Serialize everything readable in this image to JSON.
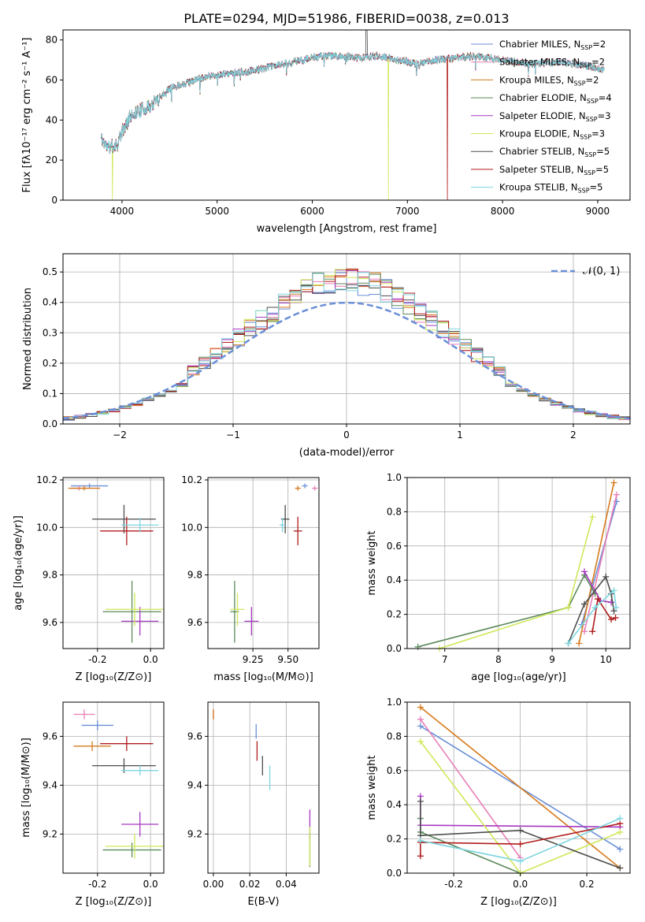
{
  "title": "PLATE=0294, MJD=51986, FIBERID=0038, z=0.013",
  "colors": {
    "Chabrier MILES": "#6a8fd8",
    "Salpeter MILES": "#e87fb8",
    "Kroupa MILES": "#d67a1c",
    "Chabrier ELODIE": "#5c8a5c",
    "Salpeter ELODIE": "#a638c0",
    "Kroupa ELODIE": "#cfe85a",
    "Chabrier STELIB": "#4d4d4d",
    "Salpeter STELIB": "#b01c1c",
    "Kroupa STELIB": "#7ed6e0"
  },
  "spectrum": {
    "xlabel": "wavelength [Angstrom, rest frame]",
    "ylabel": "Flux [fλ10⁻¹⁷ erg cm⁻² s⁻¹ A⁻¹]",
    "legend": [
      {
        "name": "Chabrier MILES",
        "nssp": "2"
      },
      {
        "name": "Salpeter MILES",
        "nssp": "2"
      },
      {
        "name": "Kroupa MILES",
        "nssp": "2"
      },
      {
        "name": "Chabrier ELODIE",
        "nssp": "4"
      },
      {
        "name": "Salpeter ELODIE",
        "nssp": "3"
      },
      {
        "name": "Kroupa ELODIE",
        "nssp": "3"
      },
      {
        "name": "Chabrier STELIB",
        "nssp": "5"
      },
      {
        "name": "Salpeter STELIB",
        "nssp": "5"
      },
      {
        "name": "Kroupa STELIB",
        "nssp": "5"
      }
    ],
    "nssp_label": "N",
    "nssp_sub": "SSP"
  },
  "chart_data": [
    {
      "type": "line",
      "title": "PLATE=0294, MJD=51986, FIBERID=0038, z=0.013",
      "xlabel": "wavelength [Angstrom, rest frame]",
      "xlim": [
        3380,
        9340
      ],
      "ylim": [
        0,
        85
      ],
      "xticks": [
        4000,
        5000,
        6000,
        7000,
        8000,
        9000
      ],
      "yticks": [
        0,
        20,
        40,
        60,
        80
      ],
      "grid": false,
      "legend": "top-right",
      "continuum": [
        [
          3780,
          31
        ],
        [
          3850,
          26
        ],
        [
          3950,
          28
        ],
        [
          4000,
          34
        ],
        [
          4100,
          43
        ],
        [
          4300,
          47
        ],
        [
          4500,
          56
        ],
        [
          4700,
          59
        ],
        [
          4900,
          62
        ],
        [
          5100,
          63
        ],
        [
          5300,
          64
        ],
        [
          5500,
          66
        ],
        [
          5700,
          68
        ],
        [
          5900,
          70
        ],
        [
          6100,
          72
        ],
        [
          6300,
          72
        ],
        [
          6500,
          71
        ],
        [
          6700,
          72
        ],
        [
          6900,
          70
        ],
        [
          7100,
          68
        ],
        [
          7300,
          70
        ],
        [
          7500,
          71
        ],
        [
          7700,
          72
        ],
        [
          8000,
          70
        ],
        [
          8300,
          68
        ],
        [
          8600,
          69
        ],
        [
          8900,
          67
        ],
        [
          9070,
          65
        ]
      ],
      "model_dips": [
        {
          "series": "Kroupa ELODIE",
          "x": 3900,
          "y": 0
        },
        {
          "series": "Kroupa ELODIE",
          "x": 6800,
          "y": 0
        },
        {
          "series": "Salpeter STELIB",
          "x": 7420,
          "y": 0
        }
      ]
    },
    {
      "type": "histogram",
      "xlabel": "(data-model)/error",
      "ylabel": "Normed distribution",
      "xlim": [
        -2.5,
        2.5
      ],
      "ylim": [
        0,
        0.56
      ],
      "xticks": [
        -2,
        -1,
        0,
        1,
        2
      ],
      "yticks": [
        0,
        0.1,
        0.2,
        0.3,
        0.4,
        0.5
      ],
      "bin_width": 0.1,
      "bin_start": -2.5,
      "reference_legend": "𝒩(0, 1)",
      "grid": true,
      "legend": "top-right"
    },
    {
      "type": "scatter",
      "xlabel": "Z [log₁₀(Z/Z⊙)]",
      "ylabel": "age  [log₁₀(age/yr)]",
      "xlim": [
        -0.33,
        0.05
      ],
      "ylim": [
        9.49,
        10.21
      ],
      "xticks": [
        -0.2,
        0.0
      ],
      "yticks": [
        9.6,
        9.8,
        10.0,
        10.2
      ],
      "points": [
        {
          "series": "Chabrier MILES",
          "x": -0.23,
          "y": 10.175,
          "xerr": 0.07,
          "yerr": 0.01
        },
        {
          "series": "Salpeter MILES",
          "x": -0.27,
          "y": 10.165,
          "xerr": 0.03,
          "yerr": 0.01
        },
        {
          "series": "Kroupa MILES",
          "x": -0.25,
          "y": 10.165,
          "xerr": 0.06,
          "yerr": 0.01
        },
        {
          "series": "Chabrier ELODIE",
          "x": -0.07,
          "y": 9.645,
          "xerr": 0.11,
          "yerr": 0.13
        },
        {
          "series": "Salpeter ELODIE",
          "x": -0.04,
          "y": 9.605,
          "xerr": 0.07,
          "yerr": 0.06
        },
        {
          "series": "Kroupa ELODIE",
          "x": -0.06,
          "y": 9.655,
          "xerr": 0.11,
          "yerr": 0.07
        },
        {
          "series": "Chabrier STELIB",
          "x": -0.1,
          "y": 10.035,
          "xerr": 0.12,
          "yerr": 0.06
        },
        {
          "series": "Salpeter STELIB",
          "x": -0.09,
          "y": 9.985,
          "xerr": 0.1,
          "yerr": 0.06
        },
        {
          "series": "Kroupa STELIB",
          "x": -0.04,
          "y": 10.01,
          "xerr": 0.07,
          "yerr": 0.03
        }
      ]
    },
    {
      "type": "scatter",
      "xlabel": "mass [log₁₀(M/M⊙)]",
      "xlim": [
        8.93,
        9.72
      ],
      "ylim": [
        9.49,
        10.21
      ],
      "xticks": [
        9.25,
        9.5
      ],
      "yticks": [
        9.6,
        9.8,
        10.0,
        10.2
      ],
      "points": [
        {
          "series": "Chabrier MILES",
          "x": 9.62,
          "y": 10.175,
          "xerr": 0.02,
          "yerr": 0.01
        },
        {
          "series": "Salpeter MILES",
          "x": 9.69,
          "y": 10.165,
          "xerr": 0.02,
          "yerr": 0.01
        },
        {
          "series": "Kroupa MILES",
          "x": 9.57,
          "y": 10.165,
          "xerr": 0.02,
          "yerr": 0.01
        },
        {
          "series": "Chabrier ELODIE",
          "x": 9.12,
          "y": 9.645,
          "xerr": 0.03,
          "yerr": 0.13
        },
        {
          "series": "Salpeter ELODIE",
          "x": 9.24,
          "y": 9.605,
          "xerr": 0.05,
          "yerr": 0.06
        },
        {
          "series": "Kroupa ELODIE",
          "x": 9.14,
          "y": 9.655,
          "xerr": 0.05,
          "yerr": 0.07
        },
        {
          "series": "Chabrier STELIB",
          "x": 9.48,
          "y": 10.035,
          "xerr": 0.03,
          "yerr": 0.06
        },
        {
          "series": "Salpeter STELIB",
          "x": 9.57,
          "y": 9.985,
          "xerr": 0.03,
          "yerr": 0.06
        },
        {
          "series": "Kroupa STELIB",
          "x": 9.46,
          "y": 10.01,
          "xerr": 0.02,
          "yerr": 0.03
        }
      ]
    },
    {
      "type": "line",
      "xlabel": "age  [log₁₀(age/yr)]",
      "ylabel": "mass weight",
      "xlim": [
        6.3,
        10.45
      ],
      "ylim": [
        0,
        1
      ],
      "xticks": [
        7,
        8,
        9,
        10
      ],
      "yticks": [
        0,
        0.2,
        0.4,
        0.6,
        0.8,
        1.0
      ],
      "series": [
        {
          "name": "Chabrier MILES",
          "points": [
            [
              9.55,
              0.14
            ],
            [
              10.2,
              0.86
            ]
          ]
        },
        {
          "name": "Salpeter MILES",
          "points": [
            [
              9.6,
              0.1
            ],
            [
              10.2,
              0.9
            ]
          ]
        },
        {
          "name": "Kroupa MILES",
          "points": [
            [
              9.5,
              0.03
            ],
            [
              10.15,
              0.97
            ]
          ]
        },
        {
          "name": "Chabrier ELODIE",
          "points": [
            [
              6.5,
              0.01
            ],
            [
              9.3,
              0.24
            ],
            [
              9.6,
              0.43
            ],
            [
              9.8,
              0.32
            ]
          ]
        },
        {
          "name": "Salpeter ELODIE",
          "points": [
            [
              9.6,
              0.45
            ],
            [
              9.9,
              0.28
            ],
            [
              10.1,
              0.27
            ]
          ]
        },
        {
          "name": "Kroupa ELODIE",
          "points": [
            [
              6.9,
              0.0
            ],
            [
              9.3,
              0.24
            ],
            [
              9.75,
              0.77
            ]
          ]
        },
        {
          "name": "Chabrier STELIB",
          "points": [
            [
              9.3,
              0.03
            ],
            [
              9.6,
              0.26
            ],
            [
              10.0,
              0.42
            ],
            [
              10.1,
              0.32
            ],
            [
              10.15,
              0.22
            ]
          ]
        },
        {
          "name": "Salpeter STELIB",
          "points": [
            [
              9.75,
              0.1
            ],
            [
              9.85,
              0.29
            ],
            [
              10.1,
              0.17
            ],
            [
              10.18,
              0.18
            ]
          ]
        },
        {
          "name": "Kroupa STELIB",
          "points": [
            [
              9.3,
              0.03
            ],
            [
              9.8,
              0.24
            ],
            [
              10.15,
              0.34
            ],
            [
              10.19,
              0.24
            ]
          ]
        }
      ]
    },
    {
      "type": "scatter",
      "xlabel": "Z [log₁₀(Z/Z⊙)]",
      "ylabel": "mass [log₁₀(M/M⊙)]",
      "xlim": [
        -0.33,
        0.05
      ],
      "ylim": [
        9.04,
        9.74
      ],
      "xticks": [
        -0.2,
        0.0
      ],
      "yticks": [
        9.2,
        9.4,
        9.6
      ],
      "points": [
        {
          "series": "Chabrier MILES",
          "x": -0.2,
          "y": 9.645,
          "xerr": 0.06,
          "yerr": 0.02
        },
        {
          "series": "Salpeter MILES",
          "x": -0.25,
          "y": 9.69,
          "xerr": 0.04,
          "yerr": 0.02
        },
        {
          "series": "Kroupa MILES",
          "x": -0.22,
          "y": 9.56,
          "xerr": 0.07,
          "yerr": 0.02
        },
        {
          "series": "Chabrier ELODIE",
          "x": -0.07,
          "y": 9.135,
          "xerr": 0.11,
          "yerr": 0.03
        },
        {
          "series": "Salpeter ELODIE",
          "x": -0.04,
          "y": 9.24,
          "xerr": 0.07,
          "yerr": 0.05
        },
        {
          "series": "Kroupa ELODIE",
          "x": -0.06,
          "y": 9.15,
          "xerr": 0.11,
          "yerr": 0.05
        },
        {
          "series": "Chabrier STELIB",
          "x": -0.1,
          "y": 9.48,
          "xerr": 0.12,
          "yerr": 0.03
        },
        {
          "series": "Salpeter STELIB",
          "x": -0.09,
          "y": 9.57,
          "xerr": 0.1,
          "yerr": 0.03
        },
        {
          "series": "Kroupa STELIB",
          "x": -0.04,
          "y": 9.46,
          "xerr": 0.07,
          "yerr": 0.02
        }
      ]
    },
    {
      "type": "scatter",
      "xlabel": "E(B-V)",
      "xlim": [
        -0.003,
        0.058
      ],
      "ylim": [
        9.04,
        9.74
      ],
      "xticks": [
        0.0,
        0.02,
        0.04
      ],
      "yticks": [
        9.2,
        9.4,
        9.6
      ],
      "points": [
        {
          "series": "Chabrier MILES",
          "x": 0.0235,
          "y": 9.62,
          "xerr": 0.0,
          "yerr": 0.03
        },
        {
          "series": "Salpeter MILES",
          "x": 0.0,
          "y": 9.69,
          "xerr": 0.0,
          "yerr": 0.02
        },
        {
          "series": "Kroupa MILES",
          "x": 0.0,
          "y": 9.69,
          "xerr": 0.0,
          "yerr": 0.02
        },
        {
          "series": "Chabrier ELODIE",
          "x": 0.053,
          "y": 9.135,
          "xerr": 0.0,
          "yerr": 0.07
        },
        {
          "series": "Salpeter ELODIE",
          "x": 0.053,
          "y": 9.24,
          "xerr": 0.0,
          "yerr": 0.06
        },
        {
          "series": "Kroupa ELODIE",
          "x": 0.053,
          "y": 9.15,
          "xerr": 0.0,
          "yerr": 0.08
        },
        {
          "series": "Chabrier STELIB",
          "x": 0.027,
          "y": 9.48,
          "xerr": 0.0,
          "yerr": 0.04
        },
        {
          "series": "Salpeter STELIB",
          "x": 0.024,
          "y": 9.54,
          "xerr": 0.0,
          "yerr": 0.04
        },
        {
          "series": "Kroupa STELIB",
          "x": 0.031,
          "y": 9.43,
          "xerr": 0.0,
          "yerr": 0.05
        }
      ]
    },
    {
      "type": "line",
      "xlabel": "Z [log₁₀(Z/Z⊙)]",
      "ylabel": "mass weight",
      "xlim": [
        -0.34,
        0.33
      ],
      "ylim": [
        0,
        1
      ],
      "xticks": [
        -0.2,
        0.0,
        0.2
      ],
      "yticks": [
        0,
        0.2,
        0.4,
        0.6,
        0.8,
        1.0
      ],
      "series": [
        {
          "name": "Chabrier MILES",
          "points": [
            [
              -0.3,
              0.86
            ],
            [
              0.3,
              0.14
            ]
          ]
        },
        {
          "name": "Salpeter MILES",
          "points": [
            [
              -0.3,
              0.9
            ],
            [
              0.0,
              0.09
            ]
          ]
        },
        {
          "name": "Kroupa MILES",
          "points": [
            [
              -0.3,
              0.97
            ],
            [
              0.3,
              0.03
            ]
          ]
        },
        {
          "name": "Chabrier ELODIE",
          "points": [
            [
              -0.3,
              0.32
            ],
            [
              -0.3,
              0.24
            ],
            [
              0.0,
              0.0
            ]
          ]
        },
        {
          "name": "Salpeter ELODIE",
          "points": [
            [
              -0.3,
              0.45
            ],
            [
              -0.3,
              0.28
            ],
            [
              0.3,
              0.27
            ]
          ]
        },
        {
          "name": "Kroupa ELODIE",
          "points": [
            [
              -0.3,
              0.77
            ],
            [
              0.0,
              0.0
            ],
            [
              0.3,
              0.24
            ]
          ]
        },
        {
          "name": "Chabrier STELIB",
          "points": [
            [
              -0.3,
              0.42
            ],
            [
              -0.3,
              0.22
            ],
            [
              0.0,
              0.25
            ],
            [
              0.3,
              0.03
            ]
          ]
        },
        {
          "name": "Salpeter STELIB",
          "points": [
            [
              -0.3,
              0.1
            ],
            [
              -0.3,
              0.18
            ],
            [
              0.0,
              0.17
            ],
            [
              0.3,
              0.29
            ]
          ]
        },
        {
          "name": "Kroupa STELIB",
          "points": [
            [
              -0.3,
              0.19
            ],
            [
              0.0,
              0.07
            ],
            [
              0.3,
              0.32
            ]
          ]
        }
      ]
    }
  ]
}
